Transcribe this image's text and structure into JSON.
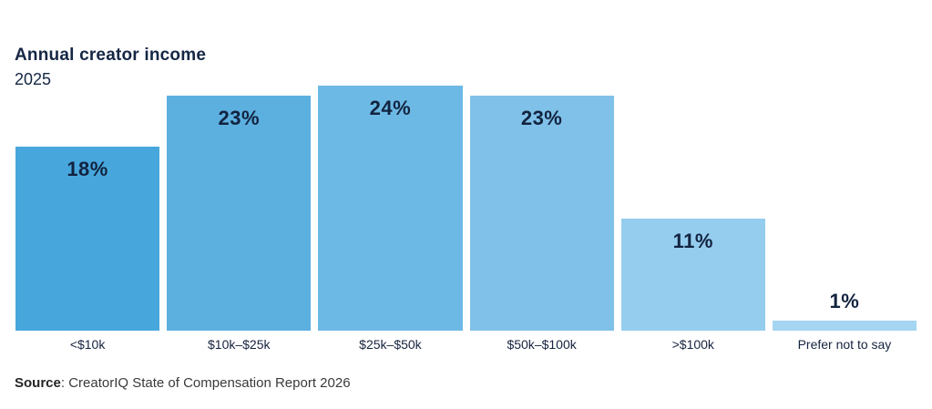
{
  "header": {
    "title": "Annual creator income",
    "subtitle": "2025"
  },
  "chart_data": {
    "type": "bar",
    "title": "Annual creator income",
    "subtitle": "2025",
    "categories": [
      "<$10k",
      "$10k–$25k",
      "$25k–$50k",
      "$50k–$100k",
      ">$100k",
      "Prefer not to say"
    ],
    "values": [
      18,
      23,
      24,
      23,
      11,
      1
    ],
    "value_labels": [
      "18%",
      "23%",
      "24%",
      "23%",
      "11%",
      "1%"
    ],
    "bar_colors": [
      "#47a7dd",
      "#5cb0e0",
      "#6db9e5",
      "#80c1e9",
      "#95cdef",
      "#a5d5f2"
    ],
    "unit": "%",
    "xlabel": "",
    "ylabel": "",
    "ylim": [
      0,
      24
    ],
    "grid": false,
    "legend": false,
    "value_label_color": "#12233f",
    "background": "#ffffff"
  },
  "footer": {
    "source_label": "Source",
    "source_text": ": CreatorIQ State of Compensation Report 2026"
  }
}
